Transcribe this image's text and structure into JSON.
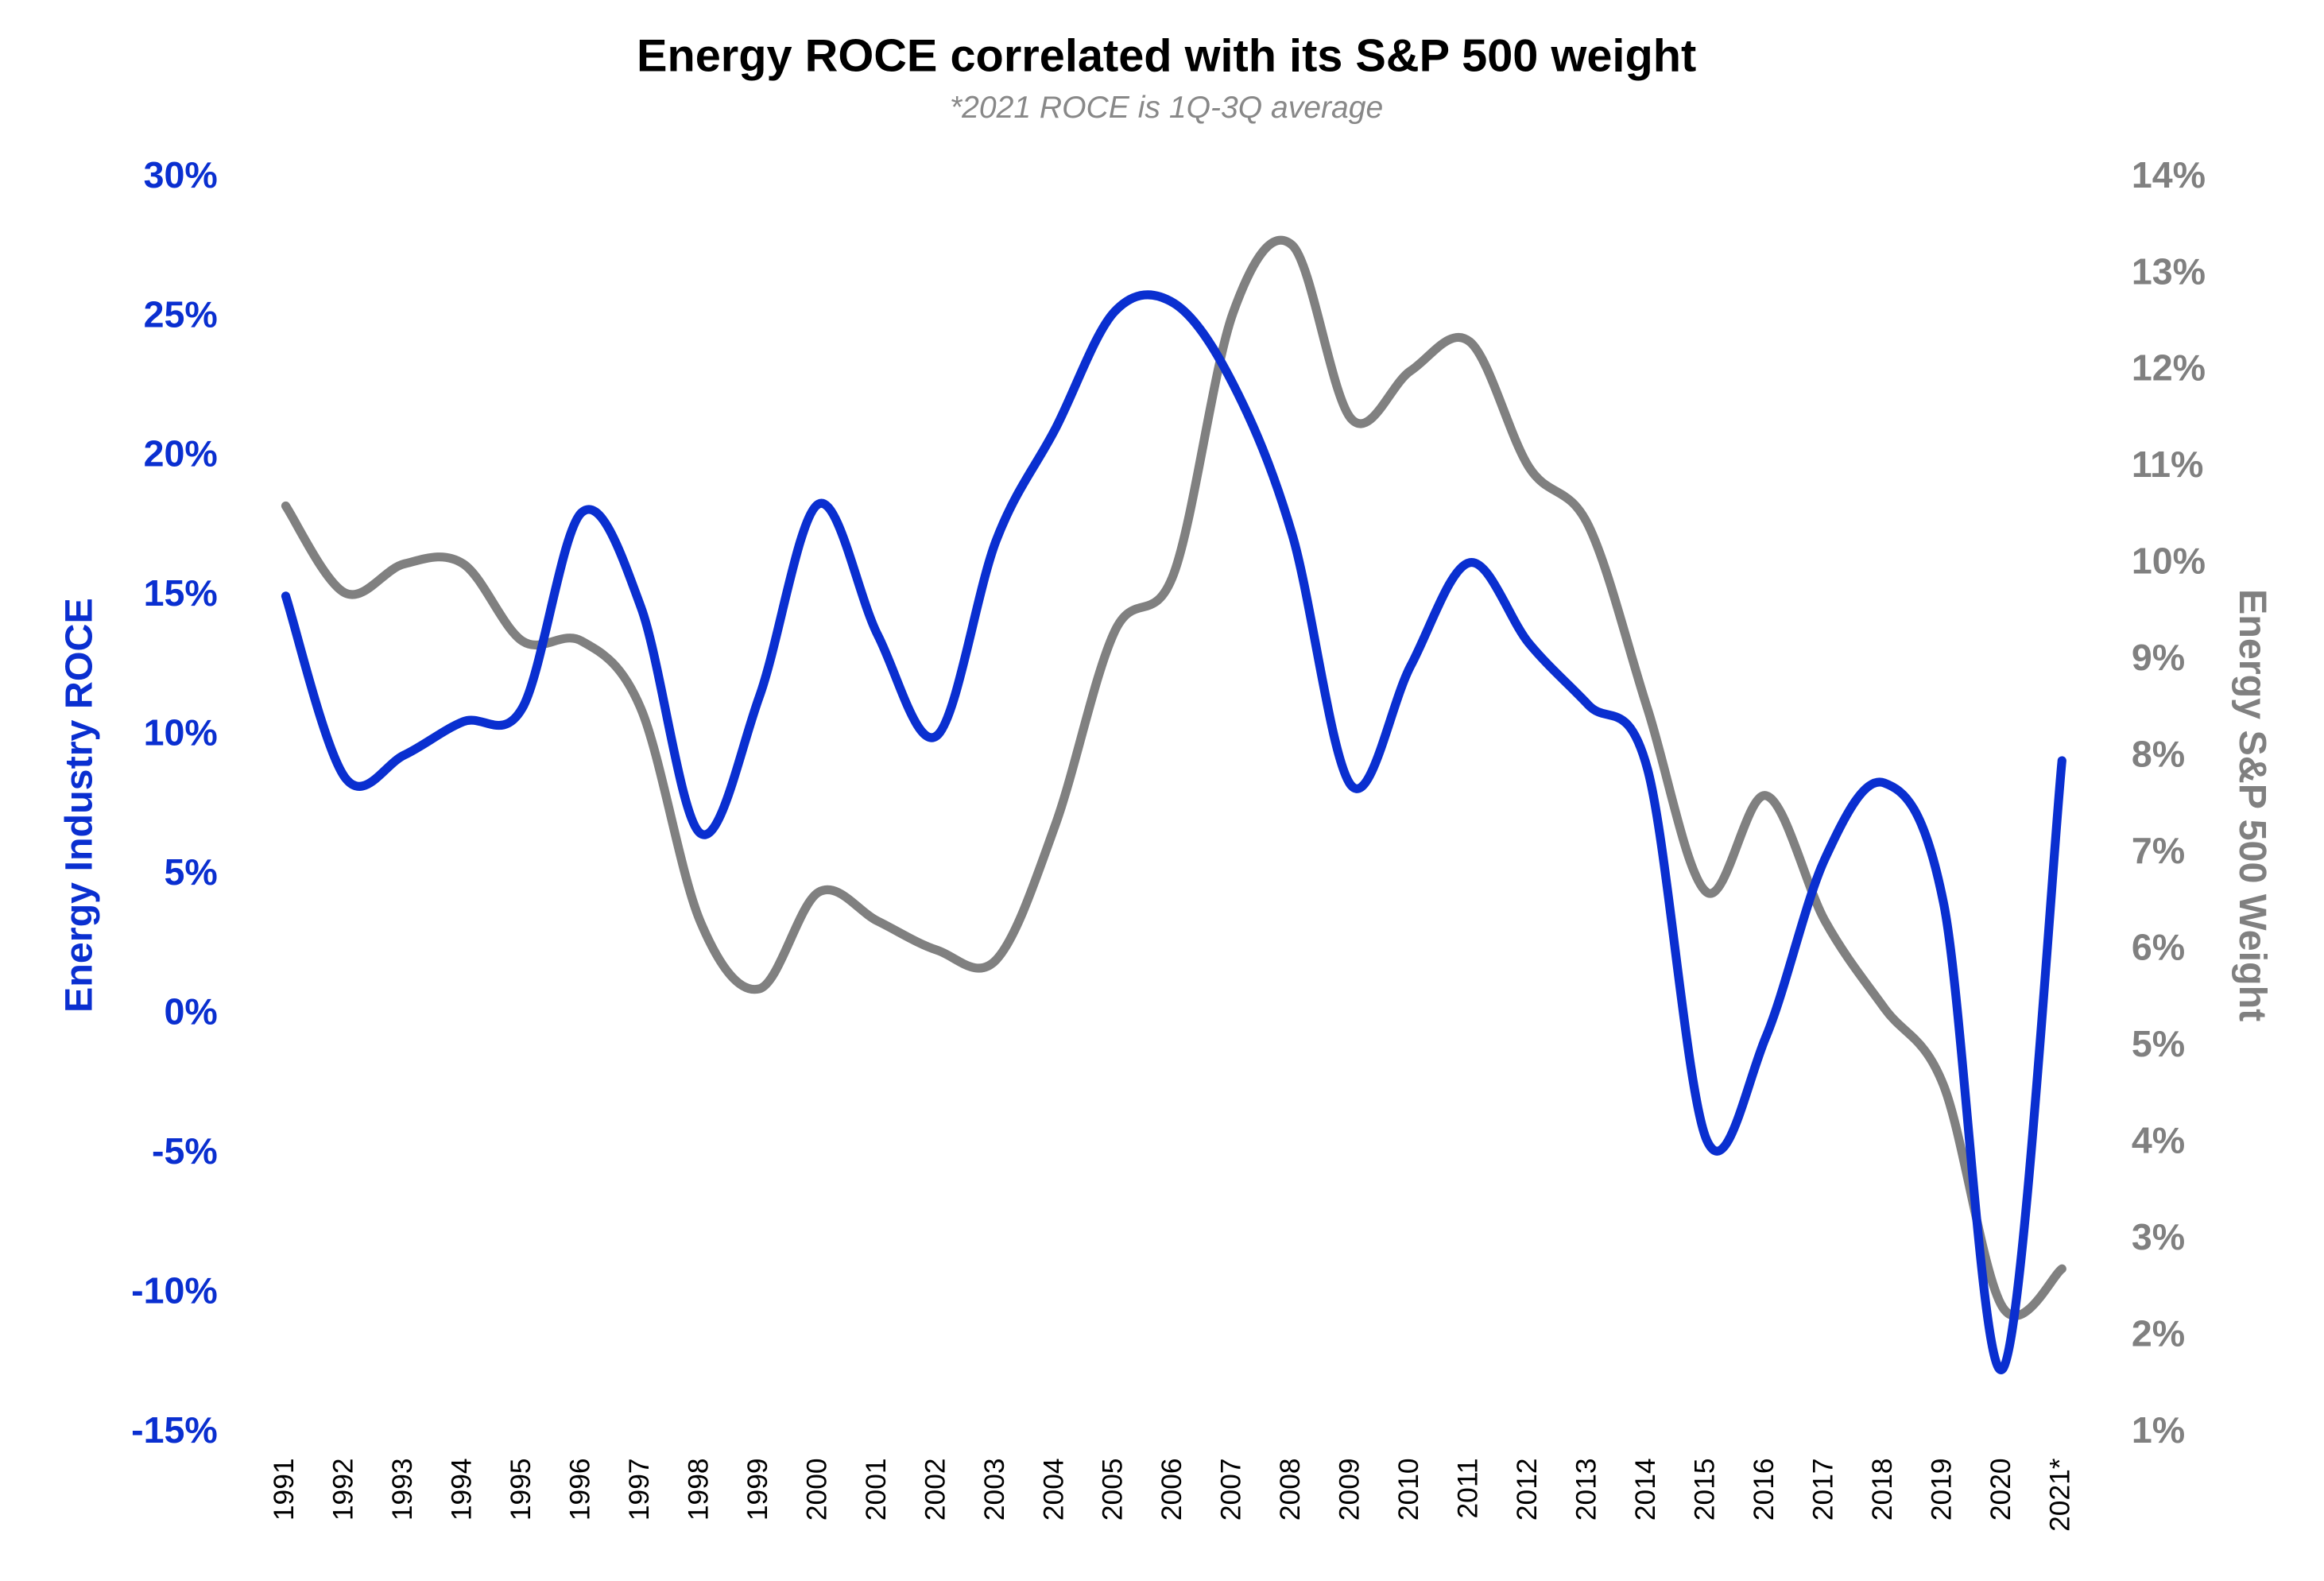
{
  "chart_data": {
    "type": "line",
    "title": "Energy ROCE correlated with its S&P 500 weight",
    "subtitle": "*2021 ROCE is 1Q-3Q average",
    "y_label": "Energy Industry ROCE",
    "y2_label": "Energy S&P 500 Weight",
    "categories": [
      "1991",
      "1992",
      "1993",
      "1994",
      "1995",
      "1996",
      "1997",
      "1998",
      "1999",
      "2000",
      "2001",
      "2002",
      "2003",
      "2004",
      "2005",
      "2006",
      "2007",
      "2008",
      "2009",
      "2010",
      "2011",
      "2012",
      "2013",
      "2014",
      "2015",
      "2016",
      "2017",
      "2018",
      "2019",
      "2020",
      "2021*"
    ],
    "series": [
      {
        "name": "Energy Industry ROCE",
        "color": "#0a2fd0",
        "axis": "y",
        "values": [
          15,
          8.5,
          9.3,
          10.5,
          11,
          18,
          14.6,
          6.5,
          11.4,
          18.3,
          13.6,
          10,
          17,
          21,
          25.2,
          25.5,
          22.6,
          17.2,
          8.2,
          12.5,
          16.2,
          13.3,
          11.1,
          8.8,
          -4.5,
          -0.8,
          5.6,
          8.3,
          4,
          -12.7,
          9.1
        ]
      },
      {
        "name": "Energy S&P 500 Weight",
        "color": "#808080",
        "axis": "y2",
        "values": [
          10.6,
          9.7,
          10,
          10,
          9.2,
          9.2,
          8.5,
          6.3,
          5.6,
          6.6,
          6.3,
          6,
          5.9,
          7.3,
          9.3,
          9.9,
          12.6,
          13.3,
          11.5,
          12,
          12.3,
          11,
          10.4,
          8.5,
          6.6,
          7.6,
          6.3,
          5.4,
          4.6,
          2.3,
          2.7
        ]
      }
    ],
    "ylim": [
      -15,
      30
    ],
    "yticks": [
      {
        "value": -15,
        "label": "-15%"
      },
      {
        "value": -10,
        "label": "-10%"
      },
      {
        "value": -5,
        "label": "-5%"
      },
      {
        "value": 0,
        "label": "0%"
      },
      {
        "value": 5,
        "label": "5%"
      },
      {
        "value": 10,
        "label": "10%"
      },
      {
        "value": 15,
        "label": "15%"
      },
      {
        "value": 20,
        "label": "20%"
      },
      {
        "value": 25,
        "label": "25%"
      },
      {
        "value": 30,
        "label": "30%"
      }
    ],
    "y2lim": [
      1,
      14
    ],
    "y2ticks": [
      {
        "value": 1,
        "label": "1%"
      },
      {
        "value": 2,
        "label": "2%"
      },
      {
        "value": 3,
        "label": "3%"
      },
      {
        "value": 4,
        "label": "4%"
      },
      {
        "value": 5,
        "label": "5%"
      },
      {
        "value": 6,
        "label": "6%"
      },
      {
        "value": 7,
        "label": "7%"
      },
      {
        "value": 8,
        "label": "8%"
      },
      {
        "value": 9,
        "label": "9%"
      },
      {
        "value": 10,
        "label": "10%"
      },
      {
        "value": 11,
        "label": "11%"
      },
      {
        "value": 12,
        "label": "12%"
      },
      {
        "value": 13,
        "label": "13%"
      },
      {
        "value": 14,
        "label": "14%"
      }
    ],
    "grid": false
  }
}
